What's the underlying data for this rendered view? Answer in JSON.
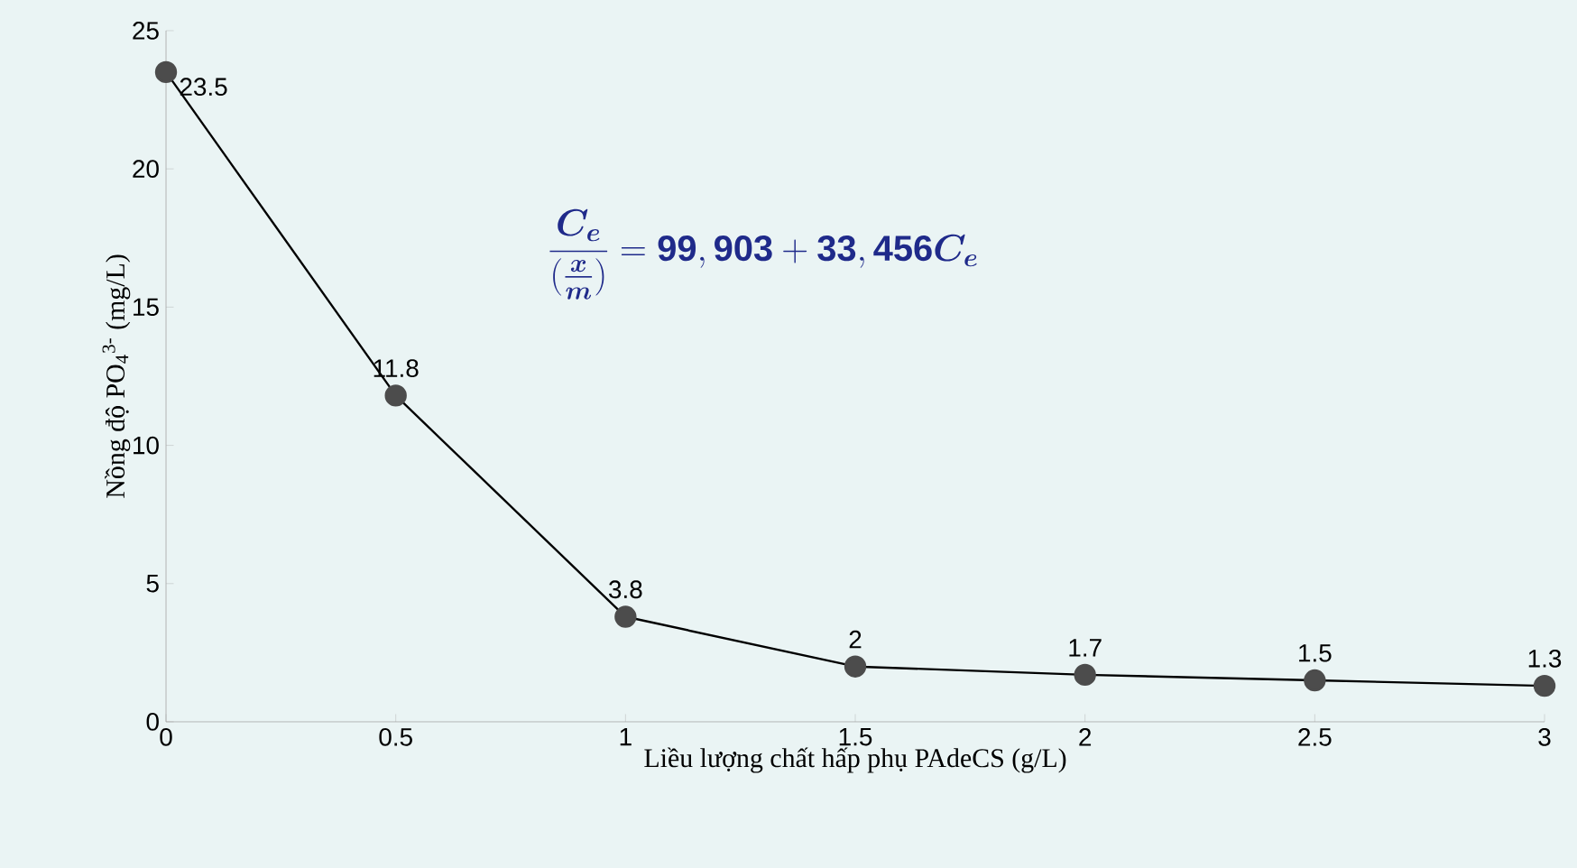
{
  "chart_data": {
    "type": "line",
    "xlabel": "Liều lượng chất hấp phụ PAdeCS (g/L)",
    "ylabel": "Nồng độ PO$_{4}$$^{3-}$ (mg/L)",
    "x": [
      0,
      0.5,
      1,
      1.5,
      2,
      2.5,
      3
    ],
    "series": [
      {
        "color": "#000000",
        "values": [
          23.5,
          11.8,
          3.8,
          2,
          1.7,
          1.5,
          1.3
        ]
      }
    ],
    "xlim": [
      0,
      3
    ],
    "xticks": [
      0,
      0.5,
      1,
      1.5,
      2,
      2.5,
      3
    ],
    "ylim": [
      0,
      25
    ],
    "yticks": [
      0,
      5,
      10,
      15,
      20,
      25
    ],
    "grid": false,
    "marker": "circle",
    "line_style": "solid",
    "data_labels": true,
    "annotations": [
      "\\frac{\\boldsymbol{C_e}}{(\\frac{\\boldsymbol{x}}{\\boldsymbol{m}})} = \\mathbf{99,903} + \\mathbf{33,456}\\boldsymbol{C_e}"
    ]
  }
}
